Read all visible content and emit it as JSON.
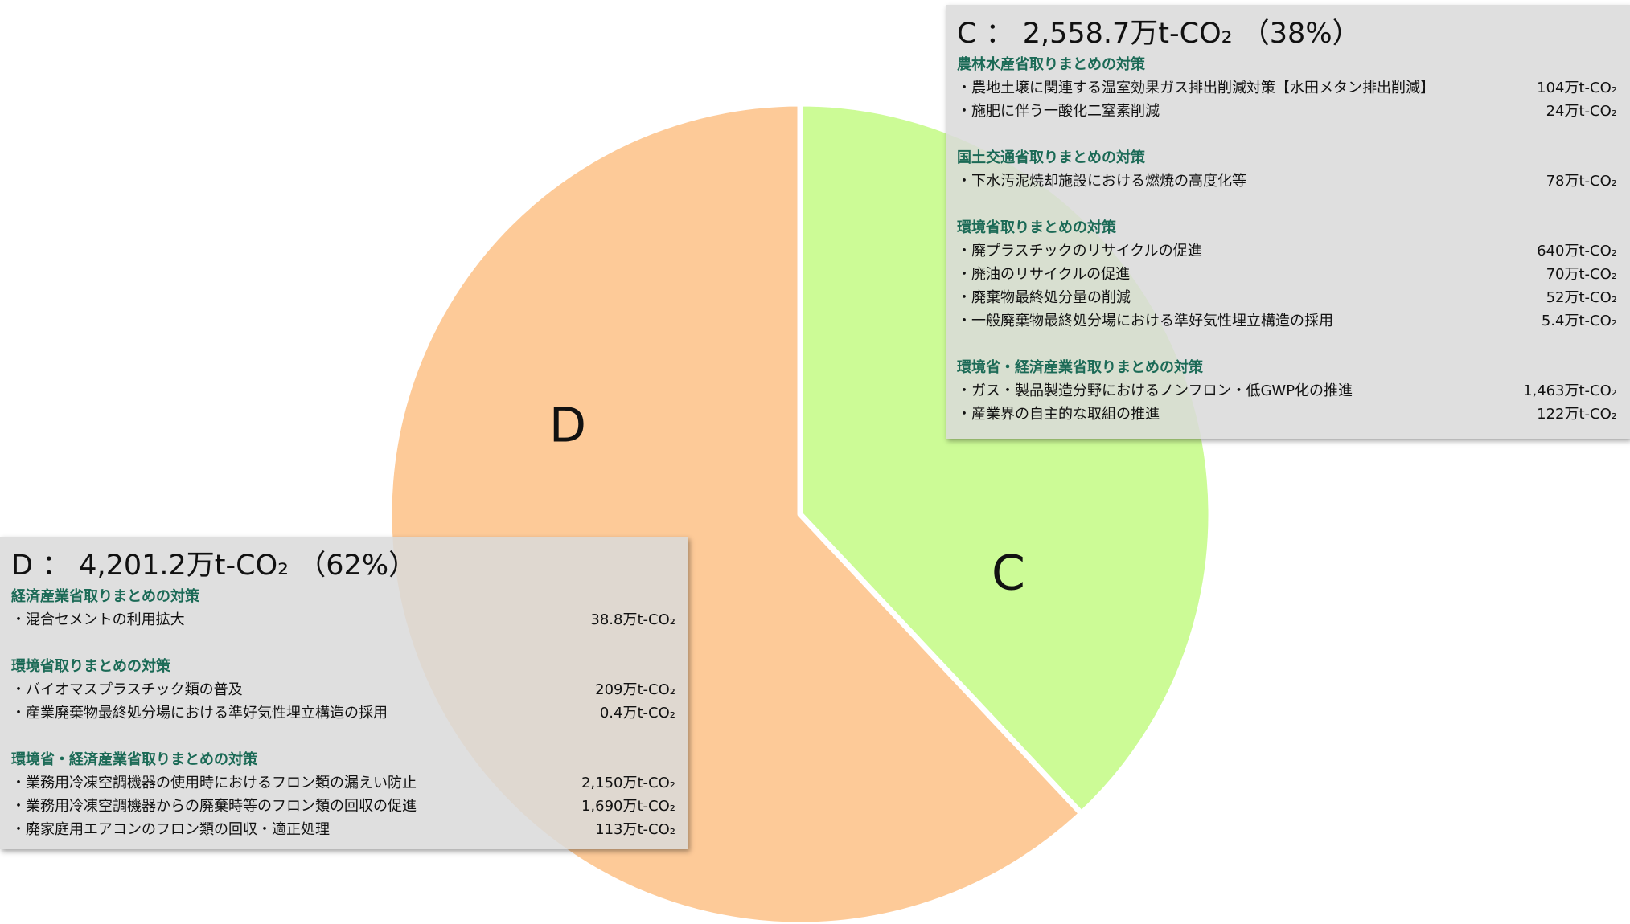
{
  "chart_data": {
    "type": "pie",
    "categories": [
      "C",
      "D"
    ],
    "values": [
      38,
      62
    ],
    "colors": [
      "#ccfb96",
      "#fdca98"
    ]
  },
  "panels": [
    {
      "title": "C ： 2,558.7万t-CO₂ （38%）",
      "groups": [
        {
          "heading": "農林水産省取りまとめの対策",
          "items": [
            {
              "label": "・農地土壌に関連する温室効果ガス排出削減対策【水田メタン排出削減】",
              "amount": "104万t-CO₂"
            },
            {
              "label": "・施肥に伴う一酸化二窒素削減",
              "amount": "24万t-CO₂"
            }
          ]
        },
        {
          "heading": "国土交通省取りまとめの対策",
          "items": [
            {
              "label": "・下水汚泥焼却施設における燃焼の高度化等",
              "amount": "78万t-CO₂"
            }
          ]
        },
        {
          "heading": "環境省取りまとめの対策",
          "items": [
            {
              "label": "・廃プラスチックのリサイクルの促進",
              "amount": "640万t-CO₂"
            },
            {
              "label": "・廃油のリサイクルの促進",
              "amount": "70万t-CO₂"
            },
            {
              "label": "・廃棄物最終処分量の削減",
              "amount": "52万t-CO₂"
            },
            {
              "label": "・一般廃棄物最終処分場における準好気性埋立構造の採用",
              "amount": "5.4万t-CO₂"
            }
          ]
        },
        {
          "heading": "環境省・経済産業省取りまとめの対策",
          "items": [
            {
              "label": "・ガス・製品製造分野におけるノンフロン・低GWP化の推進",
              "amount": "1,463万t-CO₂"
            },
            {
              "label": "・産業界の自主的な取組の推進",
              "amount": "122万t-CO₂"
            }
          ]
        }
      ]
    },
    {
      "title": "D ： 4,201.2万t-CO₂ （62%）",
      "groups": [
        {
          "heading": "経済産業省取りまとめの対策",
          "items": [
            {
              "label": "・混合セメントの利用拡大",
              "amount": "38.8万t-CO₂"
            }
          ]
        },
        {
          "heading": "環境省取りまとめの対策",
          "items": [
            {
              "label": "・バイオマスプラスチック類の普及",
              "amount": "209万t-CO₂"
            },
            {
              "label": "・産業廃棄物最終処分場における準好気性埋立構造の採用",
              "amount": "0.4万t-CO₂"
            }
          ]
        },
        {
          "heading": "環境省・経済産業省取りまとめの対策",
          "items": [
            {
              "label": "・業務用冷凍空調機器の使用時におけるフロン類の漏えい防止",
              "amount": "2,150万t-CO₂"
            },
            {
              "label": "・業務用冷凍空調機器からの廃棄時等のフロン類の回収の促進",
              "amount": "1,690万t-CO₂"
            },
            {
              "label": "・廃家庭用エアコンのフロン類の回収・適正処理",
              "amount": "113万t-CO₂"
            }
          ]
        }
      ]
    }
  ]
}
